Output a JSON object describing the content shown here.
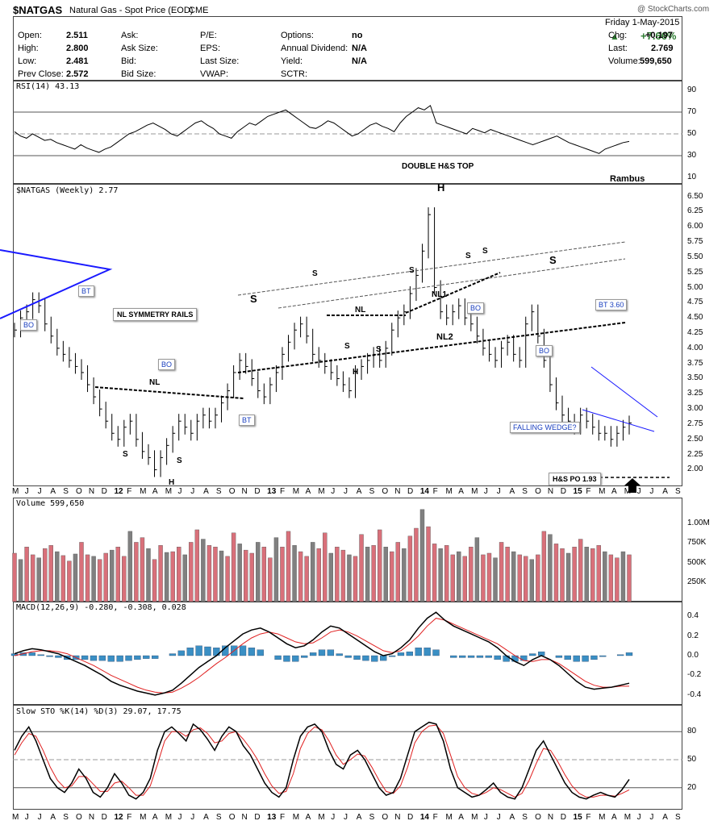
{
  "header": {
    "symbol": "$NATGAS",
    "name": "Natural Gas - Spot Price (EOD)",
    "exchange": "CME",
    "copyright": "@ StockCharts.com",
    "date": "Friday  1-May-2015",
    "change_pct": "+7.66%",
    "rows": [
      {
        "k1": "Open:",
        "v1": "2.511",
        "k2": "Ask:",
        "k3": "P/E:",
        "k4": "Options:",
        "v4": "no",
        "k5": "Chg:",
        "v5": "+0.197"
      },
      {
        "k1": "High:",
        "v1": "2.800",
        "k2": "Ask Size:",
        "k3": "EPS:",
        "k4": "Annual Dividend:",
        "v4": "N/A",
        "k5": "Last:",
        "v5": "2.769"
      },
      {
        "k1": "Low:",
        "v1": "2.481",
        "k2": "Bid:",
        "k3": "Last Size:",
        "k4": "Yield:",
        "v4": "N/A",
        "k5": "Volume:",
        "v5": "599,650"
      },
      {
        "k1": "Prev Close:",
        "v1": "2.572",
        "k2": "Bid Size:",
        "k3": "VWAP:",
        "k4": "SCTR:",
        "v4": "",
        "k5": "",
        "v5": ""
      }
    ]
  },
  "colors": {
    "up": "#2e7d32",
    "down": "#d9534f",
    "blue": "#1a1aff",
    "macd_hist": "#3a8fc4",
    "vol_up": "#808080",
    "vol_down": "#d9707a",
    "signal": "#e02020"
  },
  "chart_data": [
    {
      "type": "line",
      "title": "RSI(14) 43.13",
      "ylim": [
        10,
        90
      ],
      "ticks": [
        90,
        70,
        50,
        30,
        10
      ],
      "series": [
        {
          "name": "RSI(14)",
          "values": [
            52,
            48,
            46,
            50,
            47,
            44,
            45,
            42,
            40,
            38,
            36,
            40,
            37,
            35,
            33,
            36,
            38,
            42,
            46,
            50,
            52,
            55,
            58,
            60,
            57,
            54,
            50,
            48,
            52,
            56,
            60,
            62,
            58,
            55,
            50,
            48,
            46,
            52,
            56,
            60,
            58,
            62,
            66,
            68,
            70,
            72,
            68,
            64,
            60,
            56,
            55,
            58,
            62,
            60,
            56,
            52,
            48,
            50,
            54,
            58,
            60,
            57,
            55,
            52,
            60,
            66,
            70,
            74,
            72,
            76,
            60,
            58,
            56,
            54,
            52,
            50,
            55,
            53,
            51,
            54,
            52,
            50,
            48,
            46,
            44,
            42,
            40,
            42,
            44,
            46,
            48,
            45,
            42,
            40,
            38,
            36,
            34,
            32,
            36,
            38,
            40,
            42,
            43
          ]
        }
      ]
    },
    {
      "type": "line",
      "title": "$NATGAS (Weekly) 2.77",
      "ylim": [
        1.9,
        6.6
      ],
      "ticks": [
        "6.50",
        "6.25",
        "6.00",
        "5.75",
        "5.50",
        "5.25",
        "5.00",
        "4.75",
        "4.50",
        "4.25",
        "4.00",
        "3.75",
        "3.50",
        "3.25",
        "3.00",
        "2.75",
        "2.50",
        "2.25",
        "2.00"
      ],
      "x_labels": [
        "M",
        "J",
        "J",
        "A",
        "S",
        "O",
        "N",
        "D",
        "12",
        "F",
        "M",
        "A",
        "M",
        "J",
        "J",
        "A",
        "S",
        "O",
        "N",
        "D",
        "13",
        "F",
        "M",
        "A",
        "M",
        "J",
        "J",
        "A",
        "S",
        "O",
        "N",
        "D",
        "14",
        "F",
        "M",
        "A",
        "M",
        "J",
        "J",
        "A",
        "S",
        "O",
        "N",
        "D",
        "15",
        "F",
        "M",
        "A",
        "M",
        "J",
        "J",
        "A",
        "S"
      ],
      "series": [
        {
          "name": "$NATGAS",
          "values": [
            4.3,
            4.5,
            4.6,
            4.8,
            4.7,
            4.4,
            4.2,
            4.0,
            3.9,
            3.8,
            3.7,
            3.6,
            3.4,
            3.2,
            3.0,
            2.8,
            2.6,
            2.5,
            2.7,
            2.8,
            2.5,
            2.3,
            2.2,
            2.0,
            2.2,
            2.4,
            2.6,
            2.8,
            2.7,
            2.6,
            2.8,
            2.9,
            2.8,
            2.9,
            3.1,
            3.3,
            3.6,
            3.8,
            3.7,
            3.5,
            3.3,
            3.2,
            3.4,
            3.6,
            3.9,
            4.1,
            4.3,
            4.4,
            4.2,
            3.9,
            3.8,
            3.7,
            3.6,
            3.5,
            3.4,
            3.3,
            3.6,
            3.7,
            3.8,
            3.9,
            3.8,
            4.0,
            4.3,
            4.5,
            4.6,
            4.9,
            5.2,
            5.6,
            6.2,
            5.0,
            4.6,
            4.5,
            4.6,
            4.7,
            4.5,
            4.4,
            4.2,
            4.0,
            3.9,
            3.8,
            4.0,
            4.1,
            3.9,
            3.8,
            4.4,
            4.6,
            4.2,
            3.8,
            3.4,
            3.1,
            2.9,
            2.8,
            2.7,
            2.9,
            2.8,
            2.7,
            2.6,
            2.6,
            2.5,
            2.6,
            2.7,
            2.77
          ]
        }
      ],
      "annotations": [
        "DOUBLE H&S TOP",
        "Rambus",
        "NL SYMMETRY RAILS",
        "NL",
        "NL1",
        "NL2",
        "S",
        "H",
        "BO",
        "BT",
        "BT 3.60",
        "FALLING WEDGE?",
        "H&S PO 1.93"
      ]
    },
    {
      "type": "bar",
      "title": "Volume 599,650",
      "ylim": [
        0,
        1250000
      ],
      "ticks": [
        "1.00M",
        "750K",
        "500K",
        "250K"
      ],
      "series": [
        {
          "name": "Volume",
          "values": [
            620,
            540,
            700,
            600,
            560,
            680,
            720,
            640,
            590,
            520,
            610,
            760,
            600,
            580,
            540,
            620,
            660,
            700,
            580,
            900,
            760,
            820,
            680,
            540,
            720,
            630,
            640,
            700,
            600,
            760,
            920,
            800,
            720,
            700,
            650,
            580,
            880,
            740,
            660,
            620,
            760,
            700,
            560,
            820,
            700,
            900,
            720,
            640,
            580,
            760,
            680,
            880,
            620,
            700,
            660,
            600,
            580,
            860,
            700,
            720,
            920,
            700,
            640,
            760,
            680,
            840,
            940,
            1180,
            960,
            740,
            680,
            720,
            600,
            640,
            580,
            700,
            820,
            600,
            620,
            560,
            760,
            700,
            640,
            600,
            580,
            540,
            600,
            900,
            860,
            740,
            680,
            620,
            700,
            800,
            700,
            680,
            720,
            640,
            600,
            560,
            640,
            600
          ]
        }
      ]
    },
    {
      "type": "line",
      "title": "MACD(12,26,9) -0.280, -0.308, 0.028",
      "ylim": [
        -0.45,
        0.45
      ],
      "ticks": [
        "0.4",
        "0.2",
        "0.0",
        "-0.2",
        "-0.4"
      ],
      "series": [
        {
          "name": "MACD(12,26,9)",
          "values": [
            0.02,
            0.05,
            0.07,
            0.06,
            0.04,
            0.02,
            -0.02,
            -0.06,
            -0.1,
            -0.15,
            -0.2,
            -0.26,
            -0.3,
            -0.33,
            -0.36,
            -0.38,
            -0.4,
            -0.38,
            -0.35,
            -0.28,
            -0.2,
            -0.12,
            -0.06,
            0.0,
            0.08,
            0.15,
            0.22,
            0.26,
            0.28,
            0.24,
            0.18,
            0.12,
            0.08,
            0.1,
            0.16,
            0.24,
            0.3,
            0.28,
            0.22,
            0.16,
            0.1,
            0.04,
            0.0,
            0.02,
            0.08,
            0.16,
            0.28,
            0.38,
            0.44,
            0.36,
            0.3,
            0.26,
            0.22,
            0.18,
            0.14,
            0.08,
            0.0,
            -0.06,
            -0.1,
            -0.04,
            0.0,
            -0.04,
            -0.1,
            -0.18,
            -0.26,
            -0.32,
            -0.34,
            -0.33,
            -0.32,
            -0.3,
            -0.28
          ]
        },
        {
          "name": "Signal",
          "values": [
            0.0,
            0.02,
            0.04,
            0.05,
            0.05,
            0.04,
            0.02,
            -0.02,
            -0.06,
            -0.1,
            -0.15,
            -0.2,
            -0.24,
            -0.28,
            -0.32,
            -0.35,
            -0.37,
            -0.38,
            -0.37,
            -0.33,
            -0.28,
            -0.22,
            -0.15,
            -0.08,
            -0.02,
            0.05,
            0.12,
            0.18,
            0.22,
            0.24,
            0.22,
            0.18,
            0.14,
            0.12,
            0.13,
            0.18,
            0.24,
            0.26,
            0.24,
            0.2,
            0.15,
            0.1,
            0.05,
            0.03,
            0.05,
            0.12,
            0.2,
            0.3,
            0.38,
            0.36,
            0.32,
            0.28,
            0.24,
            0.2,
            0.16,
            0.12,
            0.06,
            0.0,
            -0.05,
            -0.06,
            -0.04,
            -0.04,
            -0.08,
            -0.14,
            -0.2,
            -0.26,
            -0.3,
            -0.32,
            -0.32,
            -0.31,
            -0.31
          ]
        }
      ],
      "histogram": [
        0.02,
        0.03,
        0.03,
        0.01,
        -0.01,
        -0.02,
        -0.04,
        -0.04,
        -0.04,
        -0.05,
        -0.05,
        -0.06,
        -0.06,
        -0.05,
        -0.04,
        -0.03,
        -0.03,
        0.0,
        0.02,
        0.05,
        0.08,
        0.1,
        0.09,
        0.08,
        0.1,
        0.1,
        0.1,
        0.08,
        0.06,
        0.0,
        -0.04,
        -0.06,
        -0.06,
        -0.02,
        0.03,
        0.06,
        0.06,
        0.02,
        -0.02,
        -0.04,
        -0.05,
        -0.06,
        -0.05,
        -0.01,
        0.03,
        0.04,
        0.08,
        0.08,
        0.06,
        0.0,
        -0.02,
        -0.02,
        -0.02,
        -0.02,
        -0.02,
        -0.04,
        -0.06,
        -0.06,
        -0.05,
        0.02,
        0.04,
        0.0,
        -0.02,
        -0.04,
        -0.06,
        -0.06,
        -0.04,
        -0.01,
        0.0,
        0.01,
        0.03
      ]
    },
    {
      "type": "line",
      "title": "Slow STO %K(14) %D(3) 29.07, 17.75",
      "ylim": [
        0,
        100
      ],
      "ticks": [
        "80",
        "50",
        "20"
      ],
      "series": [
        {
          "name": "%K(14)",
          "values": [
            60,
            75,
            85,
            70,
            50,
            30,
            20,
            15,
            25,
            40,
            30,
            15,
            10,
            20,
            35,
            25,
            12,
            8,
            15,
            30,
            60,
            80,
            85,
            78,
            70,
            88,
            82,
            72,
            60,
            75,
            85,
            80,
            65,
            55,
            40,
            25,
            15,
            10,
            20,
            50,
            75,
            85,
            88,
            80,
            60,
            45,
            40,
            55,
            60,
            50,
            35,
            20,
            12,
            15,
            30,
            55,
            80,
            85,
            90,
            88,
            70,
            40,
            20,
            15,
            10,
            12,
            18,
            25,
            15,
            10,
            8,
            20,
            40,
            60,
            70,
            55,
            40,
            25,
            15,
            10,
            8,
            12,
            15,
            12,
            10,
            18,
            29
          ]
        },
        {
          "name": "%D(3)",
          "values": [
            55,
            68,
            78,
            75,
            60,
            42,
            28,
            20,
            22,
            32,
            32,
            24,
            16,
            16,
            25,
            27,
            20,
            12,
            12,
            22,
            45,
            70,
            80,
            80,
            75,
            82,
            84,
            78,
            68,
            70,
            78,
            80,
            72,
            62,
            50,
            35,
            22,
            14,
            16,
            35,
            62,
            78,
            85,
            82,
            70,
            55,
            45,
            50,
            56,
            54,
            42,
            28,
            16,
            14,
            22,
            42,
            68,
            80,
            86,
            87,
            78,
            55,
            32,
            20,
            14,
            12,
            15,
            20,
            18,
            14,
            10,
            14,
            28,
            46,
            62,
            60,
            48,
            34,
            22,
            14,
            10,
            10,
            12,
            12,
            11,
            14,
            17.75
          ]
        }
      ]
    }
  ]
}
